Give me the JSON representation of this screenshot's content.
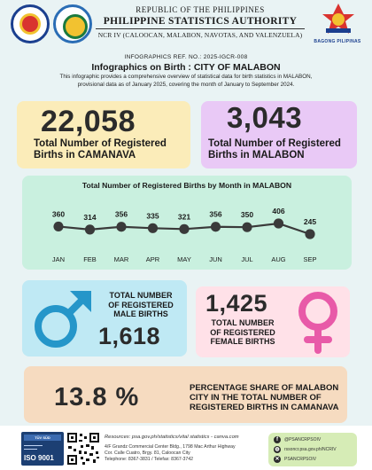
{
  "header": {
    "line1": "REPUBLIC OF THE PHILIPPINES",
    "line2": "PHILIPPINE STATISTICS AUTHORITY",
    "line3": "NCR IV (CALOOCAN, MALABON, NAVOTAS, AND VALENZUELA)",
    "bagong_label": "BAGONG PILIPINAS"
  },
  "ref": "INFOGRAPHICS REF. NO.: 2025-IGCR-008",
  "title": "Infographics on Birth : CITY OF MALABON",
  "description": "This infographic provides a comprehensive overview of statistical data for birth statistics in MALABON, provisional data as of January 2025, covering the month of January to September 2024.",
  "stats": {
    "camanava": {
      "value": "22,058",
      "label_line1": "Total Number of Registered",
      "label_line2": "Births in CAMANAVA"
    },
    "malabon": {
      "value": "3,043",
      "label_line1": "Total Number of Registered",
      "label_line2": "Births in MALABON"
    },
    "male": {
      "value": "1,618",
      "line1": "TOTAL NUMBER",
      "line2": "OF REGISTERED",
      "line3": "MALE BIRTHS"
    },
    "female": {
      "value": "1,425",
      "line1": "TOTAL NUMBER",
      "line2": "OF REGISTERED",
      "line3": "FEMALE BIRTHS"
    },
    "share": {
      "value": "13.8 %",
      "line1": "PERCENTAGE SHARE OF MALABON",
      "line2": "CITY IN THE TOTAL NUMBER OF",
      "line3": "REGISTERED BIRTHS IN CAMANAVA"
    }
  },
  "colors": {
    "male_symbol": "#2596c9",
    "female_symbol": "#e85aa8",
    "line": "#3a3a3a"
  },
  "chart_data": {
    "type": "line",
    "title": "Total Number of Registered Births  by Month in MALABON",
    "categories": [
      "JAN",
      "FEB",
      "MAR",
      "APR",
      "MAY",
      "JUN",
      "JUL",
      "AUG",
      "SEP"
    ],
    "values": [
      360,
      314,
      356,
      335,
      321,
      356,
      350,
      406,
      245
    ],
    "grid": false,
    "data_labels": true
  },
  "footer": {
    "iso_top": "TÜV SÜD",
    "iso_text": "ISO 9001",
    "sources": "Resources: psa.gov.ph/statistics/vital statistics - canva.com",
    "addr1": "4/F Grandz Commercial Center Bldg., 1798 Mac Arthur Highway",
    "addr2": "Cor. Calle Cuatro, Brgy. 81, Caloocan City",
    "addr3": "Telephone: 8367-3831 / Telefax: 8367-3742",
    "facebook": "@PSANCRPSOIV",
    "website": "rssoncr.psa.gov.ph/NCRIV",
    "twitter": "PSANCRPSOIV"
  }
}
